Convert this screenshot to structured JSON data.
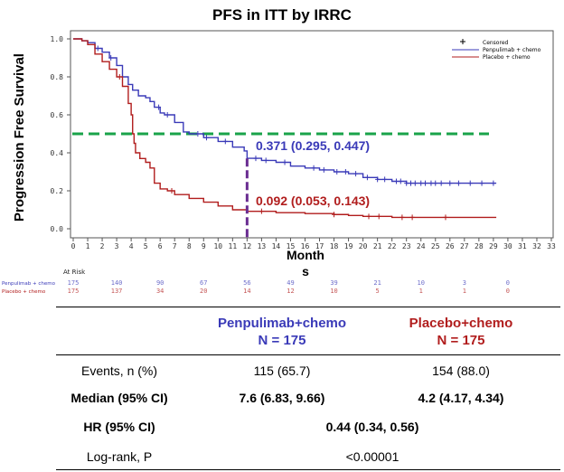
{
  "chart_data": {
    "type": "line",
    "title": "PFS in ITT by IRRC",
    "xlabel": "Months",
    "ylabel": "Progression Free Survival",
    "xlim": [
      0,
      33
    ],
    "ylim": [
      0,
      1
    ],
    "xticks": [
      0,
      1,
      2,
      3,
      4,
      5,
      6,
      7,
      8,
      9,
      10,
      11,
      12,
      13,
      14,
      15,
      16,
      17,
      18,
      19,
      20,
      21,
      22,
      23,
      24,
      25,
      26,
      27,
      28,
      29,
      30,
      31,
      32,
      33
    ],
    "yticks": [
      "0.0",
      "0.2",
      "0.4",
      "0.6",
      "0.8",
      "1.0"
    ],
    "legend": {
      "position": "top-right",
      "censored_label": "Censored",
      "censored_marker": "+"
    },
    "median_line": {
      "y": 0.5,
      "color": "#1aa34a"
    },
    "landmark_line": {
      "x": 12,
      "color": "#6a2d91"
    },
    "series": [
      {
        "name": "Penpulimab + chemo",
        "color": "#3a3ab8",
        "points": [
          [
            0,
            1.0
          ],
          [
            0.6,
            0.99
          ],
          [
            1.0,
            0.98
          ],
          [
            1.5,
            0.95
          ],
          [
            2.0,
            0.93
          ],
          [
            2.5,
            0.9
          ],
          [
            3.0,
            0.86
          ],
          [
            3.4,
            0.8
          ],
          [
            3.8,
            0.76
          ],
          [
            4.1,
            0.73
          ],
          [
            4.5,
            0.7
          ],
          [
            5.0,
            0.69
          ],
          [
            5.3,
            0.67
          ],
          [
            5.6,
            0.64
          ],
          [
            6.0,
            0.61
          ],
          [
            6.3,
            0.6
          ],
          [
            7.0,
            0.56
          ],
          [
            7.6,
            0.51
          ],
          [
            8.0,
            0.5
          ],
          [
            9.0,
            0.48
          ],
          [
            10.0,
            0.46
          ],
          [
            11.0,
            0.43
          ],
          [
            11.8,
            0.41
          ],
          [
            12.0,
            0.371
          ],
          [
            13.0,
            0.36
          ],
          [
            14.0,
            0.35
          ],
          [
            15.0,
            0.33
          ],
          [
            16.0,
            0.32
          ],
          [
            17.0,
            0.31
          ],
          [
            18.0,
            0.3
          ],
          [
            19.0,
            0.29
          ],
          [
            20.0,
            0.27
          ],
          [
            21.0,
            0.26
          ],
          [
            22.0,
            0.25
          ],
          [
            23.0,
            0.24
          ],
          [
            29.2,
            0.24
          ]
        ],
        "censor_x": [
          1.7,
          2.6,
          5.9,
          6.5,
          8.6,
          9.2,
          10.5,
          12.6,
          13.3,
          14.6,
          16.6,
          17.3,
          18.2,
          18.8,
          19.5,
          20.3,
          21.0,
          21.5,
          22.3,
          22.6,
          23.0,
          23.3,
          23.6,
          24.0,
          24.3,
          24.7,
          25.0,
          25.4,
          26.0,
          26.6,
          27.4,
          28.2,
          29.0
        ]
      },
      {
        "name": "Placebo + chemo",
        "color": "#b11d1d",
        "points": [
          [
            0,
            1.0
          ],
          [
            0.6,
            0.99
          ],
          [
            1.0,
            0.97
          ],
          [
            1.5,
            0.92
          ],
          [
            2.0,
            0.88
          ],
          [
            2.5,
            0.84
          ],
          [
            3.0,
            0.8
          ],
          [
            3.4,
            0.75
          ],
          [
            3.8,
            0.66
          ],
          [
            4.0,
            0.6
          ],
          [
            4.1,
            0.5
          ],
          [
            4.2,
            0.45
          ],
          [
            4.3,
            0.4
          ],
          [
            4.6,
            0.37
          ],
          [
            5.0,
            0.35
          ],
          [
            5.3,
            0.32
          ],
          [
            5.6,
            0.24
          ],
          [
            6.0,
            0.21
          ],
          [
            6.5,
            0.2
          ],
          [
            7.0,
            0.18
          ],
          [
            8.0,
            0.16
          ],
          [
            9.0,
            0.14
          ],
          [
            10.0,
            0.12
          ],
          [
            11.0,
            0.1
          ],
          [
            12.0,
            0.092
          ],
          [
            14.0,
            0.085
          ],
          [
            16.0,
            0.08
          ],
          [
            18.0,
            0.075
          ],
          [
            19.0,
            0.07
          ],
          [
            20.0,
            0.065
          ],
          [
            22.0,
            0.06
          ],
          [
            29.2,
            0.06
          ]
        ],
        "censor_x": [
          3.2,
          6.8,
          13.0,
          18.0,
          20.4,
          21.1,
          22.7,
          23.4,
          25.7
        ]
      }
    ],
    "annotations": [
      {
        "text": "0.371 (0.295, 0.447)",
        "series": 0,
        "x": 12,
        "y": 0.371
      },
      {
        "text": "0.092 (0.053, 0.143)",
        "series": 1,
        "x": 12,
        "y": 0.092
      }
    ],
    "at_risk": {
      "label": "At Risk",
      "times": [
        0,
        3,
        6,
        9,
        12,
        15,
        18,
        21,
        24,
        27,
        30
      ],
      "rows": [
        {
          "name": "Penpulimab + chemo",
          "counts": [
            "175",
            "140",
            "90",
            "67",
            "56",
            "49",
            "39",
            "21",
            "10",
            "3",
            "0"
          ]
        },
        {
          "name": "Placebo + chemo",
          "counts": [
            "175",
            "137",
            "34",
            "20",
            "14",
            "12",
            "10",
            "5",
            "1",
            "1",
            "0"
          ]
        }
      ]
    }
  },
  "table": {
    "arm1": {
      "name": "Penpulimab+chemo",
      "n": "N = 175"
    },
    "arm2": {
      "name": "Placebo+chemo",
      "n": "N = 175"
    },
    "rows": {
      "events": {
        "label": "Events, n (%)",
        "arm1": "115 (65.7)",
        "arm2": "154 (88.0)"
      },
      "median": {
        "label": "Median (95% CI)",
        "arm1": "7.6 (6.83, 9.66)",
        "arm2": "4.2 (4.17, 4.34)"
      },
      "hr": {
        "label": "HR (95% CI)",
        "value": "0.44 (0.34, 0.56)"
      },
      "logrank": {
        "label": "Log-rank, P",
        "value": "<0.00001"
      }
    }
  }
}
